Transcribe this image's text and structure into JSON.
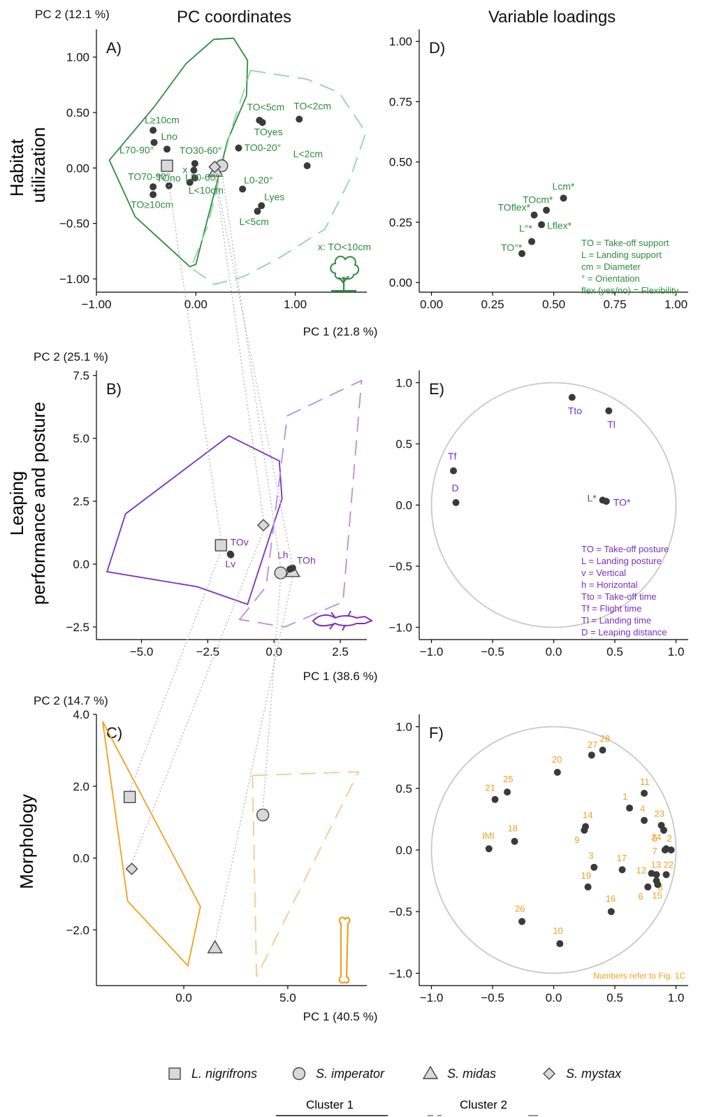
{
  "headers": {
    "left": "PC coordinates",
    "right": "Variable loadings"
  },
  "colors": {
    "habitat": "#2e8b3e",
    "habitat_light": "#8fd7a4",
    "leaping": "#7b2fbf",
    "leaping_light": "#b98ce0",
    "morph": "#f0a01e",
    "morph_light": "#f4c98a",
    "point": "#3a3a3a",
    "circle": "#c8c8c8",
    "connector": "#b8b8b8"
  },
  "row_labels": {
    "habitat": [
      "Habitat",
      "utilization"
    ],
    "leaping": [
      "Leaping",
      "performance and posture"
    ],
    "morph": [
      "Morphology"
    ]
  },
  "species": [
    {
      "name": "L. nigrifrons",
      "shape": "square"
    },
    {
      "name": "S. imperator",
      "shape": "circle"
    },
    {
      "name": "S. midas",
      "shape": "triangle"
    },
    {
      "name": "S. mystax",
      "shape": "diamond"
    }
  ],
  "clusters": {
    "one": "Cluster 1",
    "two": "Cluster 2"
  },
  "chart_data": [
    {
      "id": "A",
      "panel_label": "A)",
      "type": "scatter",
      "xlabel": "PC 1 (21.8 %)",
      "ylabel": "PC 2 (12.1 %)",
      "xlim": [
        -1.0,
        1.72
      ],
      "ylim": [
        -1.12,
        1.25
      ],
      "xticks": [
        -1.0,
        0.0,
        1.0
      ],
      "xtick_labels": [
        "−1.00",
        "0.00",
        "1.00"
      ],
      "yticks": [
        1.0,
        0.5,
        0.0,
        -0.5,
        -1.0
      ],
      "ytick_labels": [
        "1.00",
        "0.50",
        "0.00",
        "−0.50",
        "−1.00"
      ],
      "points": [
        {
          "x": -0.43,
          "y": 0.34,
          "label": "L≥10cm"
        },
        {
          "x": -0.42,
          "y": 0.23,
          "label": "Lno"
        },
        {
          "x": -0.29,
          "y": 0.17,
          "label": "L70-90°"
        },
        {
          "x": -0.43,
          "y": -0.17,
          "label": "TO70-90°"
        },
        {
          "x": -0.43,
          "y": -0.24,
          "label": "TO≥10cm"
        },
        {
          "x": -0.27,
          "y": -0.16,
          "label": "TOno"
        },
        {
          "x": -0.01,
          "y": 0.04,
          "label": "TO30-60°"
        },
        {
          "x": -0.02,
          "y": -0.02,
          "label": "x"
        },
        {
          "x": -0.06,
          "y": -0.13,
          "label": "L<10cm"
        },
        {
          "x": -0.01,
          "y": -0.09,
          "label": "L30-60°"
        },
        {
          "x": 0.43,
          "y": 0.18,
          "label": "TO0-20°"
        },
        {
          "x": 0.64,
          "y": 0.43,
          "label": "TO<5cm"
        },
        {
          "x": 0.67,
          "y": 0.41,
          "label": "TOyes"
        },
        {
          "x": 1.04,
          "y": 0.44,
          "label": "TO<2cm"
        },
        {
          "x": 1.12,
          "y": 0.02,
          "label": "L<2cm"
        },
        {
          "x": 0.47,
          "y": -0.19,
          "label": "L0-20°"
        },
        {
          "x": 0.66,
          "y": -0.34,
          "label": "Lyes"
        },
        {
          "x": 0.62,
          "y": -0.39,
          "label": "L<5cm"
        }
      ],
      "species_points": [
        {
          "species": "L. nigrifrons",
          "x": -0.29,
          "y": 0.02
        },
        {
          "species": "S. imperator",
          "x": 0.26,
          "y": 0.02
        },
        {
          "species": "S. midas",
          "x": 0.2,
          "y": -0.03
        },
        {
          "species": "S. mystax",
          "x": 0.19,
          "y": 0.01
        }
      ],
      "hull_cluster1": [
        [
          -0.87,
          0.07
        ],
        [
          -0.42,
          0.55
        ],
        [
          -0.1,
          0.94
        ],
        [
          0.18,
          1.16
        ],
        [
          0.38,
          1.17
        ],
        [
          0.52,
          0.97
        ],
        [
          0.51,
          0.65
        ],
        [
          0.32,
          0.25
        ],
        [
          0.19,
          -0.21
        ],
        [
          0.0,
          -0.87
        ],
        [
          -0.06,
          -0.89
        ],
        [
          -0.61,
          -0.44
        ]
      ],
      "hull_cluster2": [
        [
          0.55,
          0.88
        ],
        [
          1.12,
          0.8
        ],
        [
          1.44,
          0.68
        ],
        [
          1.71,
          0.32
        ],
        [
          1.55,
          -0.1
        ],
        [
          1.3,
          -0.55
        ],
        [
          0.84,
          -0.81
        ],
        [
          0.48,
          -0.98
        ],
        [
          0.19,
          -1.05
        ],
        [
          -0.05,
          -0.9
        ],
        [
          0.12,
          -0.52
        ],
        [
          0.34,
          0.3
        ],
        [
          0.55,
          0.88
        ]
      ],
      "annotation": "x: TO<10cm"
    },
    {
      "id": "B",
      "panel_label": "B)",
      "type": "scatter",
      "xlabel": "PC 1 (38.6 %)",
      "ylabel": "PC 2  (25.1 %)",
      "xlim": [
        -6.7,
        3.5
      ],
      "ylim": [
        -3.0,
        7.7
      ],
      "xticks": [
        -5.0,
        -2.5,
        0.0,
        2.5
      ],
      "xtick_labels": [
        "−5.0",
        "−2.5",
        "0.0",
        "2.5"
      ],
      "yticks": [
        7.5,
        5.0,
        2.5,
        0.0,
        -2.5
      ],
      "ytick_labels": [
        "7.5",
        "5.0",
        "2.5",
        "0.0",
        "−2.5"
      ],
      "points": [
        {
          "x": -1.65,
          "y": 0.4,
          "label": "TOv"
        },
        {
          "x": -1.63,
          "y": 0.37,
          "label": "Lv"
        },
        {
          "x": 0.6,
          "y": -0.2,
          "label": "Lh"
        },
        {
          "x": 0.7,
          "y": -0.15,
          "label": "TOh"
        }
      ],
      "species_points": [
        {
          "species": "L. nigrifrons",
          "x": -2.0,
          "y": 0.75
        },
        {
          "species": "S. imperator",
          "x": 0.25,
          "y": -0.35
        },
        {
          "species": "S. midas",
          "x": 0.7,
          "y": -0.3
        },
        {
          "species": "S. mystax",
          "x": -0.4,
          "y": 1.55
        }
      ],
      "hull_cluster1": [
        [
          -6.3,
          -0.3
        ],
        [
          -5.6,
          2.0
        ],
        [
          -1.7,
          5.1
        ],
        [
          0.2,
          4.1
        ],
        [
          0.3,
          2.6
        ],
        [
          -1.0,
          -1.6
        ],
        [
          -2.9,
          -0.9
        ],
        [
          -6.3,
          -0.3
        ]
      ],
      "hull_cluster2": [
        [
          -1.3,
          -2.2
        ],
        [
          -0.3,
          -0.9
        ],
        [
          0.5,
          5.9
        ],
        [
          3.3,
          7.3
        ],
        [
          2.6,
          -1.5
        ],
        [
          0.4,
          -2.5
        ],
        [
          -1.3,
          -2.2
        ]
      ]
    },
    {
      "id": "C",
      "panel_label": "C)",
      "type": "scatter",
      "xlabel": "PC 1 (40.5 %)",
      "ylabel": "PC 2 (14.7 %)",
      "xlim": [
        -4.2,
        8.8
      ],
      "ylim": [
        -3.55,
        4.0
      ],
      "xticks": [
        0.0,
        5.0
      ],
      "xtick_labels": [
        "0.0",
        "5.0"
      ],
      "yticks": [
        4.0,
        2.0,
        0.0,
        -2.0
      ],
      "ytick_labels": [
        "4.0",
        "2.0",
        "0.0",
        "−2.0"
      ],
      "points": [],
      "species_points": [
        {
          "species": "L. nigrifrons",
          "x": -2.6,
          "y": 1.7
        },
        {
          "species": "S. imperator",
          "x": 3.8,
          "y": 1.2
        },
        {
          "species": "S. midas",
          "x": 1.5,
          "y": -2.5
        },
        {
          "species": "S. mystax",
          "x": -2.5,
          "y": -0.3
        }
      ],
      "hull_cluster1": [
        [
          -3.9,
          3.8
        ],
        [
          -2.7,
          -1.2
        ],
        [
          0.2,
          -3.0
        ],
        [
          0.8,
          -1.35
        ],
        [
          -3.9,
          3.8
        ]
      ],
      "hull_cluster2": [
        [
          3.3,
          2.3
        ],
        [
          8.4,
          2.4
        ],
        [
          3.5,
          -3.3
        ],
        [
          3.3,
          2.3
        ]
      ]
    },
    {
      "id": "D",
      "panel_label": "D)",
      "type": "scatter",
      "xlim": [
        -0.05,
        1.05
      ],
      "ylim": [
        -0.04,
        1.05
      ],
      "xticks": [
        0.0,
        0.25,
        0.5,
        0.75,
        1.0
      ],
      "xtick_labels": [
        "0.00",
        "0.25",
        "0.50",
        "0.75",
        "1.00"
      ],
      "yticks": [
        1.0,
        0.75,
        0.5,
        0.25,
        0.0
      ],
      "ytick_labels": [
        "1.00",
        "0.75",
        "0.50",
        "0.25",
        "0.00"
      ],
      "points": [
        {
          "x": 0.54,
          "y": 0.35,
          "label": "Lcm*"
        },
        {
          "x": 0.47,
          "y": 0.3,
          "label": "TOcm*"
        },
        {
          "x": 0.42,
          "y": 0.28,
          "label": "TOflex*"
        },
        {
          "x": 0.45,
          "y": 0.24,
          "label": "Lflex*"
        },
        {
          "x": 0.41,
          "y": 0.17,
          "label": "L°*"
        },
        {
          "x": 0.37,
          "y": 0.12,
          "label": "TO°*"
        }
      ],
      "legend_lines": [
        "TO = Take-off support",
        "L = Landing support",
        "cm = Diameter",
        "° = Orientation",
        "flex (yes/no) = Flexibility"
      ]
    },
    {
      "id": "E",
      "panel_label": "E)",
      "type": "scatter",
      "xlim": [
        -1.1,
        1.1
      ],
      "ylim": [
        -1.1,
        1.1
      ],
      "xticks": [
        -1.0,
        -0.5,
        0.0,
        0.5,
        1.0
      ],
      "xtick_labels": [
        "−1.0",
        "−0.5",
        "0.0",
        "0.5",
        "1.0"
      ],
      "yticks": [
        1.0,
        0.5,
        0.0,
        -0.5,
        -1.0
      ],
      "ytick_labels": [
        "1.0",
        "0.5",
        "0.0",
        "−0.5",
        "−1.0"
      ],
      "points": [
        {
          "x": 0.15,
          "y": 0.88,
          "label": "Tto"
        },
        {
          "x": 0.45,
          "y": 0.77,
          "label": "Tl"
        },
        {
          "x": -0.82,
          "y": 0.28,
          "label": "Tf"
        },
        {
          "x": -0.8,
          "y": 0.02,
          "label": "D"
        },
        {
          "x": 0.4,
          "y": 0.04,
          "label": "L*"
        },
        {
          "x": 0.43,
          "y": 0.03,
          "label": "TO*"
        }
      ],
      "legend_lines": [
        "TO = Take-off posture",
        "L = Landing posture",
        "v = Vertical",
        "h = Horizontal",
        "Tto = Take-off time",
        "Tf = Flight time",
        "Tl = Landing time",
        "D = Leaping distance"
      ]
    },
    {
      "id": "F",
      "panel_label": "F)",
      "type": "scatter",
      "xlim": [
        -1.1,
        1.1
      ],
      "ylim": [
        -1.1,
        1.1
      ],
      "xticks": [
        -1.0,
        -0.5,
        0.0,
        0.5,
        1.0
      ],
      "xtick_labels": [
        "−1.0",
        "−0.5",
        "0.0",
        "0.5",
        "1.0"
      ],
      "yticks": [
        1.0,
        0.5,
        0.0,
        -0.5,
        -1.0
      ],
      "ytick_labels": [
        "1.0",
        "0.5",
        "0.0",
        "−0.5",
        "−1.0"
      ],
      "points": [
        {
          "x": 0.31,
          "y": 0.77,
          "label": "27"
        },
        {
          "x": 0.4,
          "y": 0.81,
          "label": "28"
        },
        {
          "x": 0.03,
          "y": 0.63,
          "label": "20"
        },
        {
          "x": -0.48,
          "y": 0.41,
          "label": "21"
        },
        {
          "x": -0.38,
          "y": 0.47,
          "label": "25"
        },
        {
          "x": 0.74,
          "y": 0.46,
          "label": "11"
        },
        {
          "x": 0.62,
          "y": 0.34,
          "label": "1"
        },
        {
          "x": 0.74,
          "y": 0.24,
          "label": "4"
        },
        {
          "x": 0.88,
          "y": 0.2,
          "label": "23"
        },
        {
          "x": 0.9,
          "y": 0.16,
          "label": "24"
        },
        {
          "x": 0.26,
          "y": 0.19,
          "label": "14"
        },
        {
          "x": 0.25,
          "y": 0.16,
          "label": "9"
        },
        {
          "x": -0.53,
          "y": 0.01,
          "label": "IMI"
        },
        {
          "x": -0.32,
          "y": 0.07,
          "label": "18"
        },
        {
          "x": 0.91,
          "y": 0.0,
          "label": "5"
        },
        {
          "x": 0.96,
          "y": 0.0,
          "label": "2"
        },
        {
          "x": 0.92,
          "y": 0.01,
          "label": "7"
        },
        {
          "x": 0.33,
          "y": -0.14,
          "label": "3"
        },
        {
          "x": 0.56,
          "y": -0.16,
          "label": "17"
        },
        {
          "x": 0.8,
          "y": -0.19,
          "label": "12"
        },
        {
          "x": 0.84,
          "y": -0.2,
          "label": "13"
        },
        {
          "x": 0.92,
          "y": -0.2,
          "label": "22"
        },
        {
          "x": 0.84,
          "y": -0.25,
          "label": "8"
        },
        {
          "x": 0.77,
          "y": -0.3,
          "label": "6"
        },
        {
          "x": 0.85,
          "y": -0.28,
          "label": "15"
        },
        {
          "x": 0.28,
          "y": -0.3,
          "label": "19"
        },
        {
          "x": 0.47,
          "y": -0.5,
          "label": "16"
        },
        {
          "x": -0.26,
          "y": -0.58,
          "label": "26"
        },
        {
          "x": 0.05,
          "y": -0.76,
          "label": "10"
        }
      ],
      "note": "Numbers refer to Fig. 1C"
    }
  ]
}
